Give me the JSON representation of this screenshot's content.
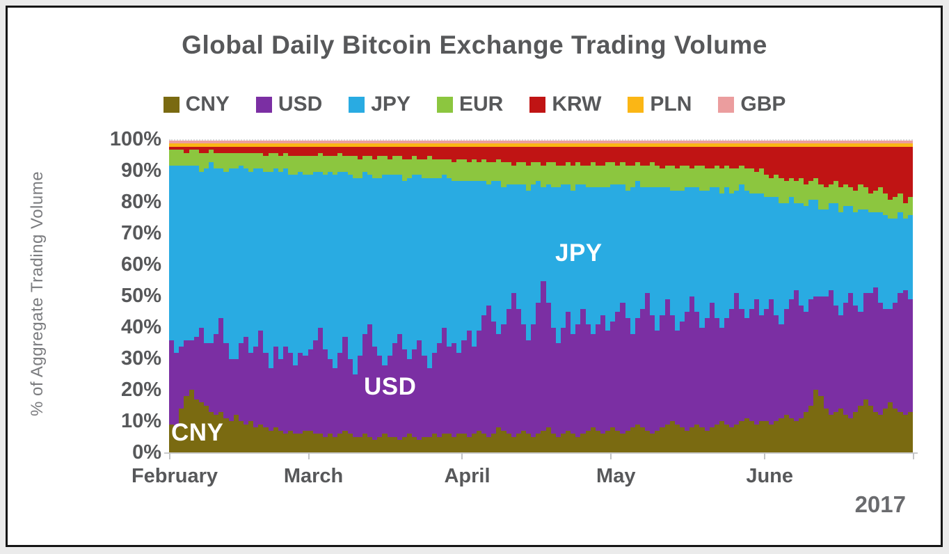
{
  "title": "Global Daily Bitcoin Exchange Trading Volume",
  "year_label": "2017",
  "y_axis_title": "% of Aggregate Trading Volume",
  "text_colors": {
    "heading": "#57585a",
    "axis_secondary": "#7b7c7f",
    "year": "#6a6b6e"
  },
  "chart_data": {
    "type": "bar",
    "subtype": "stacked-100-percent-daily",
    "title": "Global Daily Bitcoin Exchange Trading Volume",
    "ylabel": "% of Aggregate Trading Volume",
    "ylim": [
      0,
      100
    ],
    "unit": "percent",
    "grid": false,
    "legend_position": "top",
    "n_days": 150,
    "y_tick_labels": [
      "100%",
      "90%",
      "80%",
      "70%",
      "60%",
      "50%",
      "40%",
      "30%",
      "20%",
      "10%",
      "0%"
    ],
    "months": [
      {
        "label": "February",
        "start_day": 0
      },
      {
        "label": "March",
        "start_day": 28
      },
      {
        "label": "April",
        "start_day": 59
      },
      {
        "label": "May",
        "start_day": 89
      },
      {
        "label": "June",
        "start_day": 120
      }
    ],
    "tick_day_indices": [
      0,
      28,
      59,
      89,
      120,
      150
    ],
    "region_labels": [
      "CNY",
      "USD",
      "JPY"
    ],
    "stack_order_bottom_to_top": [
      "CNY",
      "USD",
      "JPY",
      "EUR",
      "KRW",
      "PLN",
      "GBP"
    ],
    "series": [
      {
        "name": "CNY",
        "color": "#7a6a11",
        "values": [
          9,
          8,
          14,
          18,
          20,
          17,
          16,
          15,
          13,
          12,
          13,
          11,
          10,
          12,
          10,
          9,
          10,
          8,
          9,
          8,
          7,
          8,
          7,
          6,
          7,
          6,
          6,
          7,
          7,
          6,
          6,
          5,
          6,
          5,
          6,
          7,
          6,
          5,
          5,
          6,
          5,
          4,
          5,
          6,
          5,
          5,
          4,
          5,
          6,
          5,
          4,
          5,
          5,
          6,
          5,
          6,
          6,
          5,
          6,
          6,
          5,
          6,
          7,
          6,
          5,
          6,
          8,
          7,
          6,
          5,
          6,
          7,
          6,
          5,
          6,
          7,
          8,
          6,
          5,
          6,
          7,
          6,
          5,
          6,
          7,
          8,
          7,
          6,
          7,
          8,
          7,
          6,
          7,
          8,
          9,
          8,
          7,
          6,
          7,
          8,
          9,
          10,
          9,
          8,
          7,
          8,
          9,
          8,
          7,
          8,
          9,
          10,
          9,
          8,
          9,
          10,
          11,
          10,
          9,
          10,
          10,
          9,
          10,
          11,
          12,
          11,
          10,
          11,
          13,
          15,
          20,
          18,
          14,
          12,
          13,
          14,
          12,
          11,
          13,
          15,
          17,
          15,
          13,
          12,
          14,
          16,
          14,
          13,
          12,
          13
        ]
      },
      {
        "name": "USD",
        "color": "#7b2fa3",
        "values": [
          27,
          24,
          20,
          18,
          16,
          20,
          24,
          20,
          22,
          26,
          30,
          24,
          20,
          18,
          25,
          28,
          22,
          26,
          30,
          24,
          20,
          26,
          23,
          28,
          25,
          22,
          26,
          24,
          26,
          30,
          34,
          28,
          24,
          22,
          26,
          30,
          24,
          20,
          26,
          32,
          36,
          30,
          26,
          22,
          26,
          30,
          34,
          28,
          24,
          28,
          32,
          26,
          22,
          26,
          30,
          34,
          28,
          30,
          26,
          30,
          34,
          28,
          32,
          38,
          42,
          36,
          30,
          34,
          40,
          46,
          40,
          34,
          30,
          36,
          42,
          48,
          40,
          34,
          30,
          34,
          38,
          32,
          36,
          40,
          34,
          30,
          34,
          38,
          32,
          34,
          38,
          42,
          36,
          30,
          34,
          38,
          44,
          38,
          32,
          36,
          40,
          34,
          30,
          34,
          38,
          42,
          36,
          32,
          36,
          40,
          34,
          30,
          34,
          38,
          42,
          36,
          32,
          36,
          40,
          34,
          36,
          40,
          34,
          30,
          34,
          38,
          42,
          36,
          32,
          34,
          30,
          32,
          36,
          40,
          34,
          30,
          36,
          40,
          34,
          30,
          34,
          36,
          40,
          36,
          32,
          30,
          34,
          38,
          40,
          36
        ]
      },
      {
        "name": "JPY",
        "color": "#29abe2",
        "values": [
          56,
          60,
          58,
          56,
          56,
          55,
          50,
          56,
          58,
          53,
          48,
          55,
          61,
          61,
          57,
          54,
          58,
          57,
          52,
          58,
          63,
          57,
          60,
          57,
          57,
          61,
          58,
          58,
          56,
          54,
          50,
          56,
          60,
          62,
          58,
          53,
          59,
          63,
          57,
          52,
          48,
          54,
          57,
          61,
          58,
          54,
          51,
          54,
          58,
          56,
          53,
          57,
          61,
          56,
          53,
          49,
          54,
          52,
          55,
          51,
          48,
          53,
          48,
          43,
          39,
          45,
          49,
          44,
          40,
          35,
          40,
          45,
          48,
          45,
          39,
          30,
          38,
          45,
          50,
          46,
          41,
          46,
          45,
          40,
          44,
          47,
          44,
          41,
          46,
          44,
          41,
          38,
          41,
          47,
          44,
          39,
          34,
          41,
          46,
          41,
          36,
          40,
          45,
          42,
          40,
          35,
          40,
          44,
          41,
          37,
          42,
          43,
          42,
          37,
          33,
          40,
          41,
          37,
          34,
          39,
          36,
          33,
          38,
          39,
          34,
          33,
          28,
          33,
          34,
          32,
          31,
          28,
          28,
          28,
          33,
          33,
          31,
          28,
          30,
          33,
          27,
          26,
          24,
          29,
          30,
          29,
          27,
          26,
          23,
          27
        ]
      },
      {
        "name": "EUR",
        "color": "#8cc63f",
        "values": [
          5,
          5,
          5,
          4,
          5,
          5,
          6,
          5,
          4,
          5,
          5,
          6,
          5,
          5,
          4,
          5,
          6,
          5,
          5,
          5,
          6,
          5,
          5,
          5,
          6,
          6,
          5,
          6,
          6,
          5,
          6,
          6,
          5,
          6,
          6,
          5,
          6,
          7,
          6,
          5,
          6,
          6,
          7,
          6,
          5,
          6,
          6,
          7,
          6,
          6,
          5,
          6,
          7,
          6,
          6,
          5,
          6,
          6,
          7,
          7,
          6,
          7,
          6,
          7,
          7,
          6,
          7,
          8,
          7,
          6,
          7,
          7,
          8,
          7,
          6,
          7,
          7,
          8,
          7,
          6,
          7,
          8,
          7,
          6,
          7,
          8,
          7,
          7,
          8,
          7,
          6,
          7,
          8,
          7,
          6,
          7,
          7,
          8,
          7,
          6,
          7,
          8,
          7,
          8,
          7,
          6,
          7,
          8,
          7,
          6,
          7,
          8,
          7,
          8,
          7,
          6,
          7,
          8,
          7,
          8,
          7,
          6,
          7,
          8,
          7,
          6,
          7,
          8,
          7,
          6,
          7,
          8,
          7,
          6,
          7,
          8,
          7,
          6,
          7,
          8,
          7,
          6,
          7,
          8,
          7,
          6,
          7,
          6,
          5,
          6
        ]
      },
      {
        "name": "KRW",
        "color": "#c01414",
        "values": [
          1,
          1,
          1,
          2,
          1,
          1,
          2,
          2,
          1,
          2,
          2,
          2,
          2,
          2,
          2,
          2,
          2,
          2,
          2,
          3,
          2,
          2,
          3,
          2,
          3,
          3,
          3,
          3,
          3,
          3,
          2,
          3,
          3,
          3,
          2,
          3,
          3,
          3,
          4,
          3,
          3,
          4,
          3,
          3,
          4,
          3,
          3,
          4,
          4,
          3,
          4,
          4,
          3,
          4,
          4,
          4,
          4,
          5,
          4,
          4,
          5,
          4,
          5,
          4,
          5,
          5,
          4,
          5,
          5,
          6,
          5,
          5,
          6,
          5,
          5,
          6,
          5,
          5,
          6,
          6,
          5,
          6,
          5,
          6,
          6,
          5,
          6,
          6,
          5,
          5,
          6,
          5,
          6,
          6,
          5,
          6,
          6,
          5,
          6,
          7,
          6,
          6,
          7,
          6,
          6,
          7,
          6,
          6,
          7,
          7,
          6,
          7,
          6,
          7,
          7,
          6,
          7,
          7,
          8,
          7,
          9,
          10,
          9,
          10,
          11,
          10,
          11,
          10,
          12,
          11,
          10,
          12,
          13,
          12,
          11,
          13,
          12,
          13,
          14,
          12,
          13,
          15,
          14,
          13,
          15,
          17,
          16,
          15,
          18,
          16
        ]
      },
      {
        "name": "PLN",
        "color": "#fbb615",
        "values": [
          1,
          1,
          1,
          1,
          1,
          1,
          1,
          1,
          1,
          1,
          1,
          1,
          1,
          1,
          1,
          1,
          1,
          1,
          1,
          1,
          1,
          1,
          1,
          1,
          1,
          1,
          1,
          1,
          1,
          1,
          1,
          1,
          1,
          1,
          1,
          1,
          1,
          1,
          1,
          1,
          1,
          1,
          1,
          1,
          1,
          1,
          1,
          1,
          1,
          1,
          1,
          1,
          1,
          1,
          1,
          1,
          1,
          1,
          1,
          1,
          1,
          1,
          1,
          1,
          1,
          1,
          1,
          1,
          1,
          1,
          1,
          1,
          1,
          1,
          1,
          1,
          1,
          1,
          1,
          1,
          1,
          1,
          1,
          1,
          1,
          1,
          1,
          1,
          1,
          1,
          1,
          1,
          1,
          1,
          1,
          1,
          1,
          1,
          1,
          1,
          1,
          1,
          1,
          1,
          1,
          1,
          1,
          1,
          1,
          1,
          1,
          1,
          1,
          1,
          1,
          1,
          1,
          1,
          1,
          1,
          1,
          1,
          1,
          1,
          1,
          1,
          1,
          1,
          1,
          1,
          1,
          1,
          1,
          1,
          1,
          1,
          1,
          1,
          1,
          1,
          1,
          1,
          1,
          1,
          1,
          1,
          1,
          1,
          1,
          1
        ]
      },
      {
        "name": "GBP",
        "color": "#eb9d9e",
        "values": [
          1,
          1,
          1,
          1,
          1,
          1,
          1,
          1,
          1,
          1,
          1,
          1,
          1,
          1,
          1,
          1,
          1,
          1,
          1,
          1,
          1,
          1,
          1,
          1,
          1,
          1,
          1,
          1,
          1,
          1,
          1,
          1,
          1,
          1,
          1,
          1,
          1,
          1,
          1,
          1,
          1,
          1,
          1,
          1,
          1,
          1,
          1,
          1,
          1,
          1,
          1,
          1,
          1,
          1,
          1,
          1,
          1,
          1,
          1,
          1,
          1,
          1,
          1,
          1,
          1,
          1,
          1,
          1,
          1,
          1,
          1,
          1,
          1,
          1,
          1,
          1,
          1,
          1,
          1,
          1,
          1,
          1,
          1,
          1,
          1,
          1,
          1,
          1,
          1,
          1,
          1,
          1,
          1,
          1,
          1,
          1,
          1,
          1,
          1,
          1,
          1,
          1,
          1,
          1,
          1,
          1,
          1,
          1,
          1,
          1,
          1,
          1,
          1,
          1,
          1,
          1,
          1,
          1,
          1,
          1,
          1,
          1,
          1,
          1,
          1,
          1,
          1,
          1,
          1,
          1,
          1,
          1,
          1,
          1,
          1,
          1,
          1,
          1,
          1,
          1,
          1,
          1,
          1,
          1,
          1,
          1,
          1,
          1,
          1,
          1
        ]
      }
    ]
  }
}
